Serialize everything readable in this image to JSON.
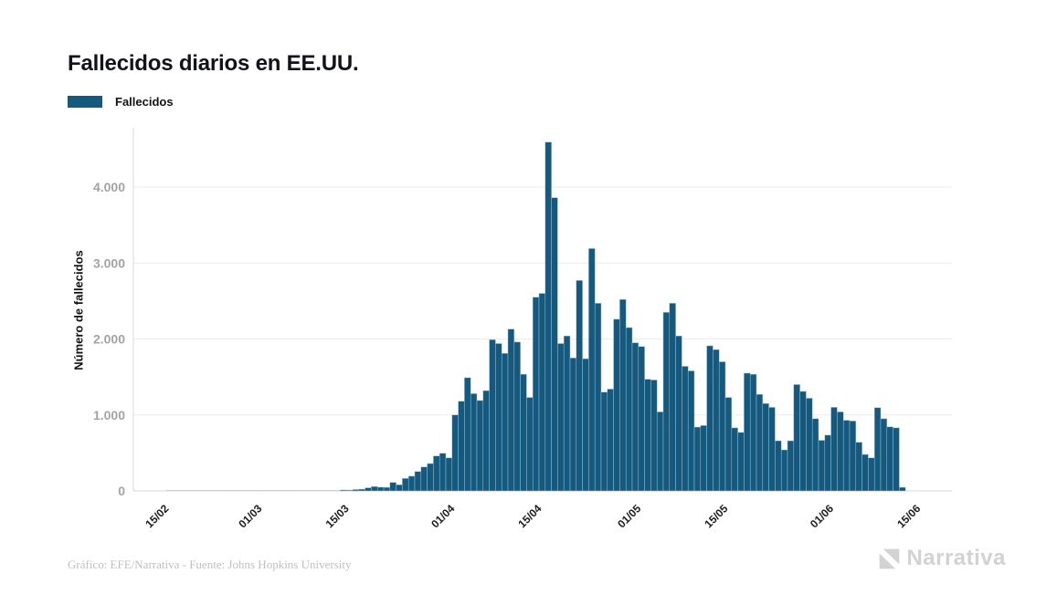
{
  "title": "Fallecidos diarios en EE.UU.",
  "legend": {
    "label": "Fallecidos",
    "swatch_color": "#15597E"
  },
  "y_axis_title": "Número de fallecidos",
  "footer": {
    "credit": "Gráfico: EFE/Narrativa - Fuente: Johns Hopkins University"
  },
  "logo": {
    "text": "Narrativa"
  },
  "colors": {
    "bar": "#15597E",
    "bar_stroke": "#9DBED2",
    "bar_faint": "#B5CDDC",
    "grid": "#EBEBEB",
    "axis": "#D8D8D8"
  },
  "chart_data": {
    "type": "bar",
    "title": "Fallecidos diarios en EE.UU.",
    "xlabel": "",
    "ylabel": "Número de fallecidos",
    "ylim": [
      0,
      4600
    ],
    "grid": "horizontal",
    "legend_position": "top-left",
    "y_ticks": [
      {
        "value": 0,
        "label": "0"
      },
      {
        "value": 1000,
        "label": "1.000"
      },
      {
        "value": 2000,
        "label": "2.000"
      },
      {
        "value": 3000,
        "label": "3.000"
      },
      {
        "value": 4000,
        "label": "4.000"
      }
    ],
    "x_ticks": [
      {
        "index": 0,
        "label": "15/02"
      },
      {
        "index": 15,
        "label": "01/03"
      },
      {
        "index": 29,
        "label": "15/03"
      },
      {
        "index": 46,
        "label": "01/04"
      },
      {
        "index": 60,
        "label": "15/04"
      },
      {
        "index": 76,
        "label": "01/05"
      },
      {
        "index": 90,
        "label": "15/05"
      },
      {
        "index": 107,
        "label": "01/06"
      },
      {
        "index": 121,
        "label": "15/06"
      }
    ],
    "series": [
      {
        "name": "Fallecidos",
        "start_date": "15/02",
        "values": [
          0,
          0,
          0,
          0,
          0,
          0,
          0,
          0,
          0,
          0,
          0,
          0,
          0,
          0,
          1,
          1,
          5,
          2,
          4,
          1,
          3,
          2,
          4,
          4,
          6,
          8,
          3,
          9,
          12,
          11,
          18,
          23,
          41,
          57,
          49,
          46,
          111,
          80,
          164,
          194,
          255,
          315,
          360,
          460,
          495,
          435,
          1000,
          1180,
          1490,
          1280,
          1190,
          1320,
          1990,
          1940,
          1810,
          2130,
          1960,
          1535,
          1230,
          2550,
          2600,
          4591,
          3860,
          1940,
          2040,
          1750,
          2770,
          1740,
          3190,
          2470,
          1300,
          1340,
          2260,
          2520,
          2150,
          1950,
          1900,
          1470,
          1460,
          1040,
          2350,
          2470,
          2040,
          1640,
          1580,
          840,
          860,
          1910,
          1860,
          1700,
          1230,
          830,
          770,
          1550,
          1535,
          1270,
          1150,
          1100,
          660,
          540,
          660,
          1400,
          1310,
          1220,
          950,
          666,
          734,
          1100,
          1040,
          930,
          920,
          640,
          480,
          435,
          1095,
          950,
          843,
          830,
          47
        ]
      }
    ]
  }
}
